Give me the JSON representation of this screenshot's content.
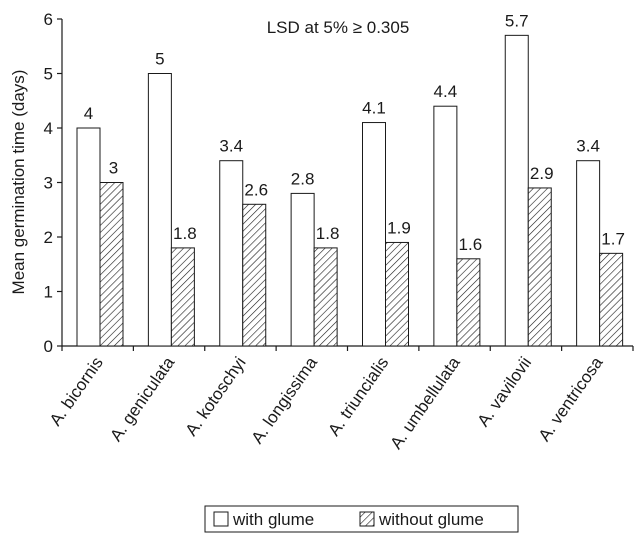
{
  "chart_data": {
    "type": "bar",
    "title": "",
    "annotation": "LSD at 5% ≥ 0.305",
    "xlabel": "",
    "ylabel": "Mean germination time (days)",
    "ylim": [
      0,
      6
    ],
    "yticks": [
      "0",
      "1",
      "2",
      "3",
      "4",
      "5",
      "6"
    ],
    "grid": false,
    "legend_position": "bottom",
    "categories": [
      "A. bicornis",
      "A. geniculata",
      "A. kotoschyi",
      "A. longissima",
      "A. triuncialis",
      "A. umbellulata",
      "A. vavilovii",
      "A. ventricosa"
    ],
    "series": [
      {
        "name": "with glume",
        "fill": "#ffffff",
        "pattern": "none",
        "values": [
          4,
          5,
          3.4,
          2.8,
          4.1,
          4.4,
          5.7,
          3.4
        ],
        "labels": [
          "4",
          "5",
          "3.4",
          "2.8",
          "4.1",
          "4.4",
          "5.7",
          "3.4"
        ]
      },
      {
        "name": "without glume",
        "fill": "#ffffff",
        "pattern": "diagonal-hatch",
        "values": [
          3,
          1.8,
          2.6,
          1.8,
          1.9,
          1.6,
          2.9,
          1.7
        ],
        "labels": [
          "3",
          "1.8",
          "2.6",
          "1.8",
          "1.9",
          "1.6",
          "2.9",
          "1.7"
        ]
      }
    ]
  }
}
